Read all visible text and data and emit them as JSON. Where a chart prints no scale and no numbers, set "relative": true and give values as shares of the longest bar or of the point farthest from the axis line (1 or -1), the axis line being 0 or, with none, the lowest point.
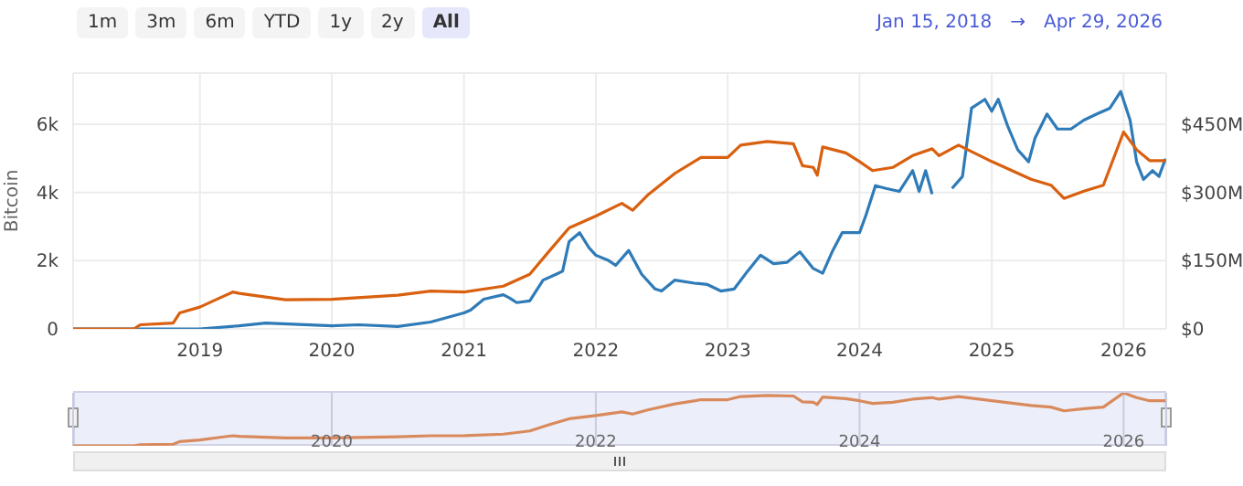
{
  "chart_data": [
    {
      "type": "line",
      "ylabel": "Bitcoin",
      "annotations": [
        "1m",
        "3m",
        "6m",
        "YTD",
        "1y",
        "2y",
        "All",
        "Jan 15, 2018",
        "→",
        "Apr 29, 2026"
      ],
      "xlim": [
        "2018-01-15",
        "2026-04-29"
      ],
      "xticks": [
        {
          "value": "2019",
          "label": "2019"
        },
        {
          "value": "2020",
          "label": "2020"
        },
        {
          "value": "2021",
          "label": "2021"
        },
        {
          "value": "2022",
          "label": "2022"
        },
        {
          "value": "2023",
          "label": "2023"
        },
        {
          "value": "2024",
          "label": "2024"
        },
        {
          "value": "2025",
          "label": "2025"
        },
        {
          "value": "2026",
          "label": "2026"
        }
      ],
      "ylim": [
        0,
        7500
      ],
      "yticks": [
        0,
        {
          "value": 2000,
          "label": "2k"
        },
        {
          "value": 4000,
          "label": "4k"
        },
        {
          "value": 6000,
          "label": "6k"
        }
      ],
      "y2lim": [
        0,
        562.5
      ],
      "y2ticks": [
        {
          "value": 0,
          "label": "$0"
        },
        {
          "value": 150,
          "label": "$150M"
        },
        {
          "value": 300,
          "label": "$300M"
        },
        {
          "value": 450,
          "label": "$450M"
        }
      ],
      "grid": true,
      "series": [
        {
          "color": "#2e7bb8",
          "x": [
            "2018-01-15",
            "2019-01-01",
            "2019-04-20",
            "2019-07-02",
            "2020-01-01",
            "2020-03-14",
            "2020-07-02",
            "2020-10-01",
            "2021-01-01",
            "2021-01-19",
            "2021-02-25",
            "2021-04-20",
            "2021-05-08",
            "2021-05-27",
            "2021-07-02",
            "2021-08-08",
            "2021-09-13",
            "2021-10-01",
            "2021-10-19",
            "2021-11-17",
            "2021-12-13",
            "2022-01-01",
            "2022-02-06",
            "2022-02-25",
            "2022-04-02",
            "2022-05-08",
            "2022-06-14",
            "2022-07-02",
            "2022-08-08",
            "2022-10-01",
            "2022-11-06",
            "2022-12-13",
            "2023-01-19",
            "2023-02-25",
            "2023-04-02",
            "2023-05-08",
            "2023-06-14",
            "2023-07-20",
            "2023-08-26",
            "2023-09-21",
            "2023-10-19",
            "2023-11-14",
            "2024-01-01",
            "2024-01-19",
            "2024-02-14",
            "2024-03-14",
            "2024-04-20",
            "2024-05-27",
            "2024-06-14",
            "2024-07-02",
            "2024-07-20",
            "2024-07-31",
            "2024-09-13",
            "2024-10-12",
            "2024-11-06",
            "2024-12-13",
            "2025-01-01",
            "2025-01-19",
            "2025-02-14",
            "2025-03-14",
            "2025-04-13",
            "2025-05-01",
            "2025-06-03",
            "2025-07-02",
            "2025-08-08",
            "2025-09-13",
            "2025-10-19",
            "2025-11-24",
            "2025-12-24",
            "2026-01-19",
            "2026-02-06",
            "2026-02-25",
            "2026-03-22",
            "2026-04-09",
            "2026-04-27"
          ],
          "values": [
            0,
            0,
            90,
            170,
            90,
            120,
            70,
            200,
            470,
            550,
            870,
            1000,
            900,
            770,
            820,
            1430,
            1600,
            1690,
            2560,
            2820,
            2380,
            2160,
            2000,
            1860,
            2300,
            1600,
            1170,
            1110,
            1430,
            1340,
            1300,
            1110,
            1170,
            1690,
            2160,
            1910,
            1950,
            2260,
            1770,
            1630,
            2300,
            2820,
            2820,
            3340,
            4200,
            4120,
            4030,
            4640,
            4030,
            4640,
            3950,
            null,
            4120,
            4470,
            6470,
            6730,
            6380,
            6730,
            5950,
            5250,
            4900,
            5600,
            6300,
            5860,
            5860,
            6120,
            6300,
            6470,
            6960,
            6120,
            4900,
            4380,
            4640,
            4470,
            4990
          ]
        },
        {
          "color": "#d9600f",
          "axis": "y2",
          "x": [
            "2018-01-15",
            "2018-07-02",
            "2018-07-20",
            "2018-10-19",
            "2018-11-06",
            "2019-01-01",
            "2019-02-25",
            "2019-04-02",
            "2019-04-20",
            "2019-07-02",
            "2019-08-26",
            "2020-01-01",
            "2020-07-02",
            "2020-10-01",
            "2021-01-01",
            "2021-04-20",
            "2021-07-02",
            "2021-08-26",
            "2021-10-19",
            "2022-01-01",
            "2022-03-14",
            "2022-04-13",
            "2022-05-27",
            "2022-08-08",
            "2022-10-19",
            "2023-01-01",
            "2023-02-06",
            "2023-04-20",
            "2023-07-02",
            "2023-07-27",
            "2023-08-26",
            "2023-09-06",
            "2023-09-21",
            "2023-11-24",
            "2024-01-01",
            "2024-02-06",
            "2024-04-02",
            "2024-05-27",
            "2024-07-20",
            "2024-08-08",
            "2024-10-01",
            "2025-01-01",
            "2025-04-20",
            "2025-06-14",
            "2025-07-20",
            "2025-09-13",
            "2025-11-06",
            "2026-01-01",
            "2026-02-06",
            "2026-03-14",
            "2026-04-27"
          ],
          "values": [
            0,
            0,
            9,
            13,
            35,
            48,
            68,
            81,
            78,
            70,
            64,
            65,
            74,
            83,
            81,
            94,
            120,
            172,
            222,
            248,
            276,
            261,
            296,
            342,
            377,
            377,
            404,
            412,
            407,
            359,
            355,
            338,
            400,
            387,
            368,
            348,
            355,
            381,
            396,
            381,
            404,
            368,
            329,
            316,
            287,
            303,
            316,
            433,
            394,
            370,
            370
          ]
        }
      ]
    },
    {
      "type": "line",
      "relative": true,
      "tick_labels": "x",
      "grid": "x",
      "xlim": [
        "2018-01-15",
        "2026-04-29"
      ],
      "xticks": [
        {
          "value": "2020",
          "label": "2020"
        },
        {
          "value": "2022",
          "label": "2022"
        },
        {
          "value": "2024",
          "label": "2024"
        },
        {
          "value": "2026",
          "label": "2026"
        }
      ],
      "series": [
        {
          "color": "#d98a5c",
          "x": [
            "2018-01-15",
            "2018-07-02",
            "2018-07-20",
            "2018-10-19",
            "2018-11-06",
            "2019-01-01",
            "2019-02-25",
            "2019-04-02",
            "2019-04-20",
            "2019-07-02",
            "2019-08-26",
            "2020-01-01",
            "2020-07-02",
            "2020-10-01",
            "2021-01-01",
            "2021-04-20",
            "2021-07-02",
            "2021-08-26",
            "2021-10-19",
            "2022-01-01",
            "2022-03-14",
            "2022-04-13",
            "2022-05-27",
            "2022-08-08",
            "2022-10-19",
            "2023-01-01",
            "2023-02-06",
            "2023-04-20",
            "2023-07-02",
            "2023-07-27",
            "2023-08-26",
            "2023-09-06",
            "2023-09-21",
            "2023-11-24",
            "2024-01-01",
            "2024-02-06",
            "2024-04-02",
            "2024-05-27",
            "2024-07-20",
            "2024-08-08",
            "2024-10-01",
            "2025-01-01",
            "2025-04-20",
            "2025-06-14",
            "2025-07-20",
            "2025-09-13",
            "2025-11-06",
            "2026-01-01",
            "2026-02-06",
            "2026-03-14",
            "2026-04-27"
          ],
          "values": [
            0,
            0,
            0.02,
            0.03,
            0.08,
            0.11,
            0.16,
            0.19,
            0.18,
            0.16,
            0.15,
            0.15,
            0.17,
            0.19,
            0.19,
            0.22,
            0.28,
            0.4,
            0.51,
            0.57,
            0.64,
            0.6,
            0.68,
            0.79,
            0.87,
            0.87,
            0.93,
            0.95,
            0.94,
            0.83,
            0.82,
            0.78,
            0.92,
            0.89,
            0.85,
            0.8,
            0.82,
            0.88,
            0.91,
            0.88,
            0.93,
            0.85,
            0.76,
            0.73,
            0.66,
            0.7,
            0.73,
            1,
            0.91,
            0.85,
            0.85
          ]
        }
      ]
    }
  ]
}
